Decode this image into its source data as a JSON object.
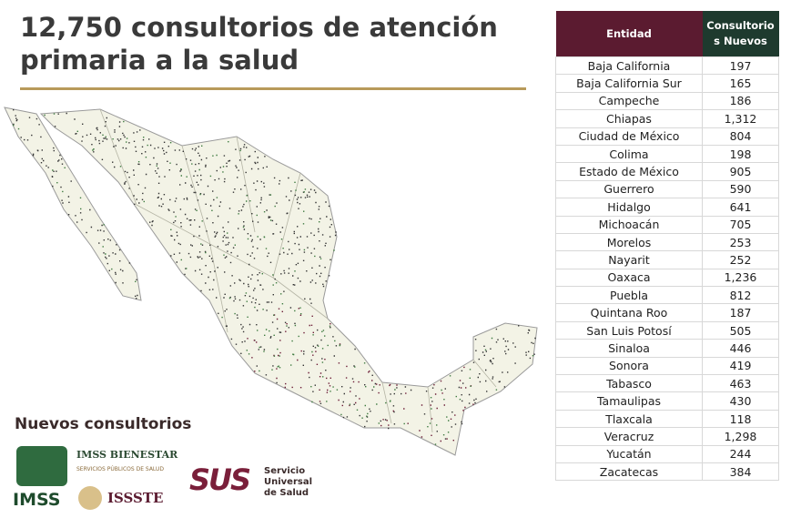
{
  "header": {
    "title": "12,750 consultorios de atención primaria a la salud"
  },
  "legend": {
    "title": "Nuevos consultorios"
  },
  "logos": {
    "imss": "IMSS",
    "imss_bienestar": "IMSS BIENESTAR",
    "imss_bienestar_sub": "SERVICIOS PÚBLICOS DE SALUD",
    "issste": "ISSSTE",
    "sus": "SUS",
    "sus_name": "Servicio Universal de Salud"
  },
  "table": {
    "columns": [
      "Entidad",
      "Consultorios Nuevos"
    ],
    "rows": [
      [
        "Baja California",
        "197"
      ],
      [
        "Baja California Sur",
        "165"
      ],
      [
        "Campeche",
        "186"
      ],
      [
        "Chiapas",
        "1,312"
      ],
      [
        "Ciudad de México",
        "804"
      ],
      [
        "Colima",
        "198"
      ],
      [
        "Estado de México",
        "905"
      ],
      [
        "Guerrero",
        "590"
      ],
      [
        "Hidalgo",
        "641"
      ],
      [
        "Michoacán",
        "705"
      ],
      [
        "Morelos",
        "253"
      ],
      [
        "Nayarit",
        "252"
      ],
      [
        "Oaxaca",
        "1,236"
      ],
      [
        "Puebla",
        "812"
      ],
      [
        "Quintana Roo",
        "187"
      ],
      [
        "San Luis Potosí",
        "505"
      ],
      [
        "Sinaloa",
        "446"
      ],
      [
        "Sonora",
        "419"
      ],
      [
        "Tabasco",
        "463"
      ],
      [
        "Tamaulipas",
        "430"
      ],
      [
        "Tlaxcala",
        "118"
      ],
      [
        "Veracruz",
        "1,298"
      ],
      [
        "Yucatán",
        "244"
      ],
      [
        "Zacatecas",
        "384"
      ]
    ]
  }
}
